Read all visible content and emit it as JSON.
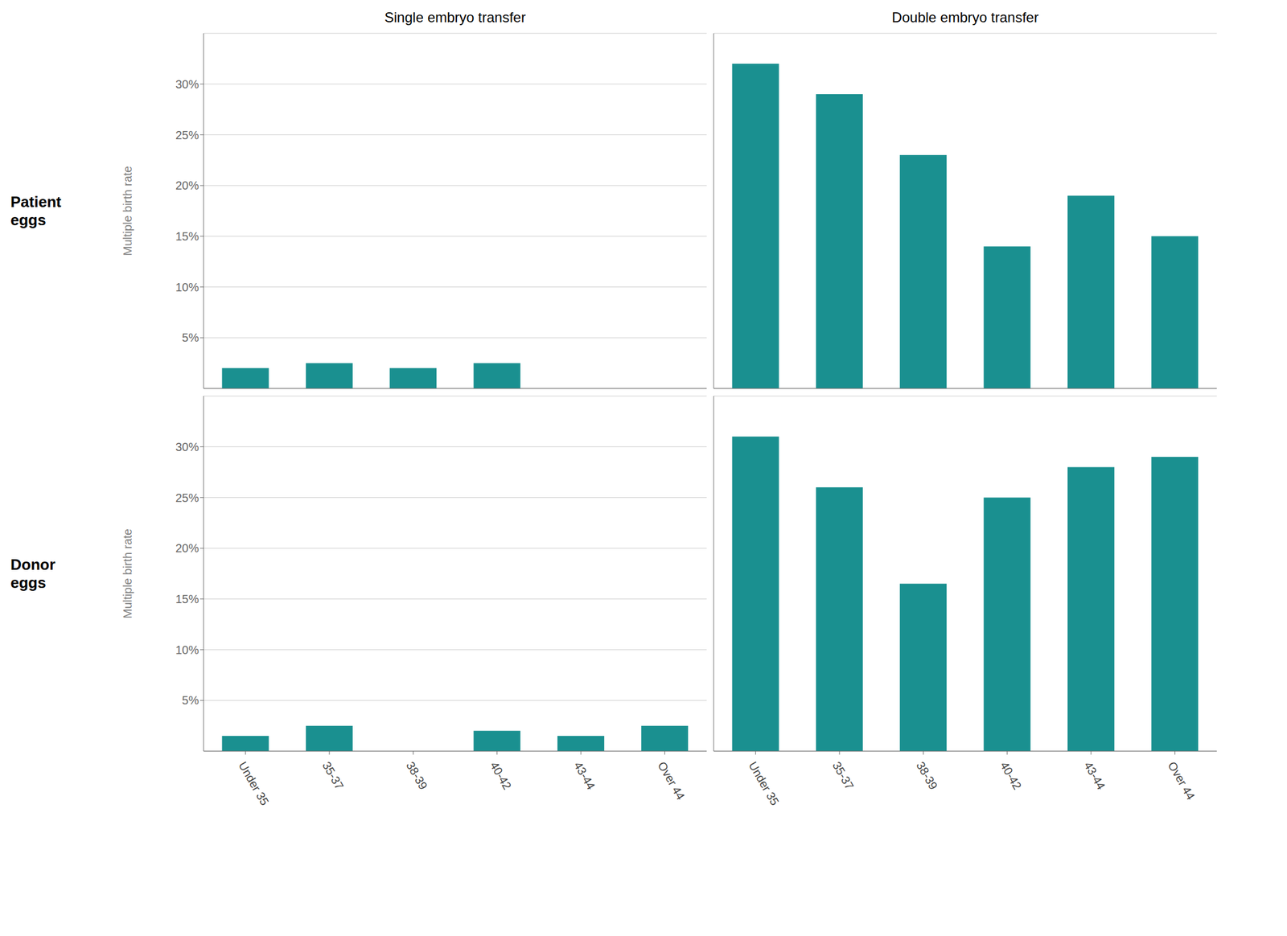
{
  "chart_data": [
    {
      "type": "bar",
      "title": "Single embryo transfer",
      "annotations": [
        "Patient\neggs"
      ],
      "ylabel": "Multiple birth rate",
      "categories": [
        "Under 35",
        "35-37",
        "38-39",
        "40-42",
        "43-44",
        "Over 44"
      ],
      "values": [
        2.0,
        2.5,
        2.0,
        2.5,
        0.0,
        0.0
      ],
      "color": "#1a9090",
      "ylim": [
        0,
        35
      ],
      "yticks": [
        {
          "value": 5,
          "label": "5%"
        },
        {
          "value": 10,
          "label": "10%"
        },
        {
          "value": 15,
          "label": "15%"
        },
        {
          "value": 20,
          "label": "20%"
        },
        {
          "value": 25,
          "label": "25%"
        },
        {
          "value": 30,
          "label": "30%"
        }
      ],
      "grid": true,
      "tick_labels": "y"
    },
    {
      "type": "bar",
      "title": "Double embryo transfer",
      "categories": [
        "Under 35",
        "35-37",
        "38-39",
        "40-42",
        "43-44",
        "Over 44"
      ],
      "values": [
        32.0,
        29.0,
        23.0,
        14.0,
        19.0,
        15.0
      ],
      "color": "#1a9090",
      "ylim": [
        0,
        35
      ],
      "yticks": [
        {
          "value": 5,
          "label": "5%"
        },
        {
          "value": 10,
          "label": "10%"
        },
        {
          "value": 15,
          "label": "15%"
        },
        {
          "value": 20,
          "label": "20%"
        },
        {
          "value": 25,
          "label": "25%"
        },
        {
          "value": 30,
          "label": "30%"
        }
      ],
      "grid": true,
      "tick_labels": false
    },
    {
      "type": "bar",
      "annotations": [
        "Donor\neggs"
      ],
      "ylabel": "Multiple birth rate",
      "categories": [
        "Under 35",
        "35-37",
        "38-39",
        "40-42",
        "43-44",
        "Over 44"
      ],
      "values": [
        1.5,
        2.5,
        0.0,
        2.0,
        1.5,
        2.5
      ],
      "color": "#1a9090",
      "ylim": [
        0,
        35
      ],
      "yticks": [
        {
          "value": 5,
          "label": "5%"
        },
        {
          "value": 10,
          "label": "10%"
        },
        {
          "value": 15,
          "label": "15%"
        },
        {
          "value": 20,
          "label": "20%"
        },
        {
          "value": 25,
          "label": "25%"
        },
        {
          "value": 30,
          "label": "30%"
        }
      ],
      "grid": true
    },
    {
      "type": "bar",
      "categories": [
        "Under 35",
        "35-37",
        "38-39",
        "40-42",
        "43-44",
        "Over 44"
      ],
      "values": [
        31.0,
        26.0,
        16.5,
        25.0,
        28.0,
        29.0
      ],
      "color": "#1a9090",
      "ylim": [
        0,
        35
      ],
      "yticks": [
        {
          "value": 5,
          "label": "5%"
        },
        {
          "value": 10,
          "label": "10%"
        },
        {
          "value": 15,
          "label": "15%"
        },
        {
          "value": 20,
          "label": "20%"
        },
        {
          "value": 25,
          "label": "25%"
        },
        {
          "value": 30,
          "label": "30%"
        }
      ],
      "grid": true,
      "tick_labels": "x"
    }
  ]
}
